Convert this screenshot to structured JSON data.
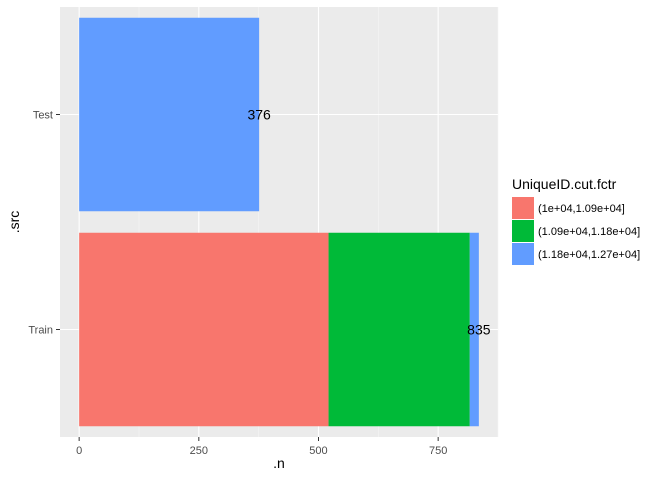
{
  "chart_data": {
    "type": "bar",
    "orientation": "horizontal",
    "stacked": true,
    "categories": [
      "Train",
      "Test"
    ],
    "series": [
      {
        "name": "(1e+04,1.09e+04]",
        "color": "#F8766D",
        "values": [
          521,
          0
        ]
      },
      {
        "name": "(1.09e+04,1.18e+04]",
        "color": "#00BA38",
        "values": [
          295,
          0
        ]
      },
      {
        "name": "(1.18e+04,1.27e+04]",
        "color": "#619CFF",
        "values": [
          19,
          376
        ]
      }
    ],
    "totals": [
      835,
      376
    ],
    "total_labels": [
      "835",
      "376"
    ],
    "xlabel": ".n",
    "ylabel": ".src",
    "xlim": [
      -40,
      875
    ],
    "xticks": [
      0,
      250,
      500,
      750
    ],
    "xtick_labels": [
      "0",
      "250",
      "500",
      "750"
    ],
    "legend_title": "UniqueID.cut.fctr",
    "legend_position": "right",
    "grid": true,
    "panel_background": "#EBEBEB"
  }
}
